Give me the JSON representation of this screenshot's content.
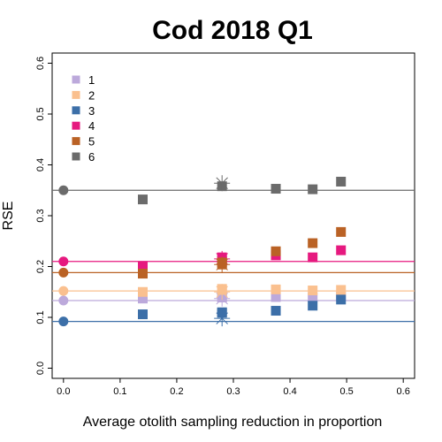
{
  "chart_data": {
    "type": "scatter",
    "title": "Cod 2018 Q1",
    "xlabel": "Average otolith sampling reduction in proportion",
    "ylabel": "RSE",
    "xlim": [
      -0.02,
      0.62
    ],
    "ylim": [
      -0.02,
      0.62
    ],
    "x_ticks": [
      "0.0",
      "0.1",
      "0.2",
      "0.3",
      "0.4",
      "0.5",
      "0.6"
    ],
    "y_ticks": [
      "0.0",
      "0.1",
      "0.2",
      "0.3",
      "0.4",
      "0.5",
      "0.6"
    ],
    "legend_position": "top-left",
    "grid": false,
    "series": [
      {
        "name": "1",
        "color": "#BCA9DB",
        "baseline": 0.133,
        "x": [
          0.14,
          0.28,
          0.28,
          0.375,
          0.44,
          0.49
        ],
        "y": [
          0.137,
          0.141,
          0.139,
          0.14,
          0.139,
          0.141
        ],
        "star": [
          0.28,
          0.137
        ]
      },
      {
        "name": "2",
        "color": "#FAC08F",
        "baseline": 0.152,
        "x": [
          0.14,
          0.28,
          0.28,
          0.375,
          0.44,
          0.49
        ],
        "y": [
          0.15,
          0.154,
          0.156,
          0.155,
          0.153,
          0.154
        ],
        "star": [
          0.28,
          0.15
        ]
      },
      {
        "name": "3",
        "color": "#3C6FA8",
        "baseline": 0.092,
        "x": [
          0.14,
          0.28,
          0.28,
          0.375,
          0.44,
          0.49
        ],
        "y": [
          0.106,
          0.11,
          0.109,
          0.113,
          0.123,
          0.135
        ],
        "star": [
          0.28,
          0.098
        ]
      },
      {
        "name": "4",
        "color": "#E6197F",
        "baseline": 0.21,
        "x": [
          0.14,
          0.28,
          0.28,
          0.375,
          0.44,
          0.49
        ],
        "y": [
          0.2,
          0.218,
          0.212,
          0.222,
          0.218,
          0.232
        ],
        "star": [
          0.28,
          0.215
        ]
      },
      {
        "name": "5",
        "color": "#BA6225",
        "baseline": 0.188,
        "x": [
          0.14,
          0.28,
          0.28,
          0.375,
          0.44,
          0.49
        ],
        "y": [
          0.186,
          0.204,
          0.208,
          0.23,
          0.246,
          0.268
        ],
        "star": [
          0.28,
          0.204
        ]
      },
      {
        "name": "6",
        "color": "#6B6B6B",
        "baseline": 0.35,
        "x": [
          0.14,
          0.28,
          0.375,
          0.44,
          0.49
        ],
        "y": [
          0.332,
          0.358,
          0.353,
          0.352,
          0.367
        ],
        "star": [
          0.28,
          0.364
        ]
      }
    ]
  }
}
